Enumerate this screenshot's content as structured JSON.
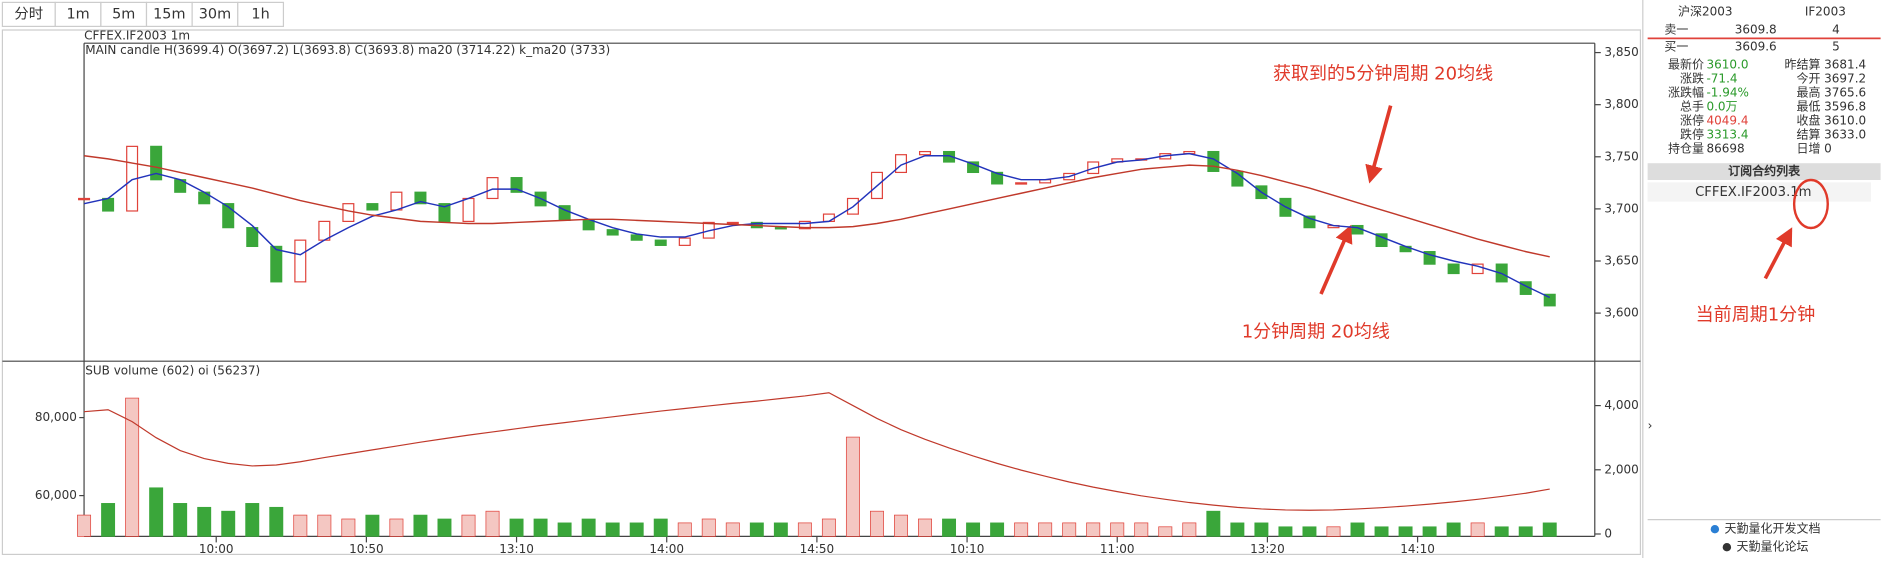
{
  "toolbar": {
    "buttons": [
      "分时",
      "1m",
      "5m",
      "15m",
      "30m",
      "1h"
    ]
  },
  "header": "CFFEX.IF2003 1m",
  "chart_data": [
    {
      "type": "candlestick",
      "subtitle": "MAIN candle H(3699.4) O(3697.2) L(3693.8) C(3693.8) ma20 (3714.22) k_ma20 (3733)",
      "x": [
        0,
        8,
        16,
        24,
        32,
        40,
        48,
        56,
        64,
        72,
        80,
        88,
        96,
        104,
        112,
        120,
        128,
        136,
        144,
        152,
        160,
        168,
        176,
        184,
        192,
        200,
        208,
        216,
        224,
        232,
        240,
        248,
        256,
        264,
        272,
        280,
        288,
        296,
        304,
        312,
        320,
        328,
        336,
        344,
        352,
        360,
        368,
        376,
        384,
        392,
        400,
        408,
        416,
        424,
        432,
        440,
        448,
        456,
        464,
        472,
        480,
        488
      ],
      "xlim": [
        0,
        503
      ],
      "series": [
        {
          "name": "candle",
          "up_color": "#e0423a",
          "down_color": "#3aa63a",
          "values": [
            3710,
            3698,
            3760,
            3728,
            3716,
            3705,
            3682,
            3664,
            3630,
            3670,
            3688,
            3705,
            3699,
            3716,
            3705,
            3688,
            3710,
            3730,
            3716,
            3703,
            3689,
            3680,
            3675,
            3670,
            3665,
            3672,
            3687,
            3687,
            3682,
            3681,
            3688,
            3695,
            3710,
            3735,
            3752,
            3755,
            3745,
            3735,
            3724,
            3725,
            3728,
            3734,
            3745,
            3748,
            3748,
            3753,
            3755,
            3736,
            3722,
            3710,
            3693,
            3682,
            3684,
            3676,
            3664,
            3659,
            3647,
            3638,
            3647,
            3630,
            3618,
            3607
          ]
        },
        {
          "name": "ma20",
          "color": "#2233bb",
          "values": [
            3705,
            3710,
            3728,
            3734,
            3728,
            3716,
            3702,
            3684,
            3661,
            3656,
            3670,
            3682,
            3693,
            3699,
            3707,
            3702,
            3710,
            3719,
            3719,
            3710,
            3699,
            3690,
            3682,
            3676,
            3673,
            3673,
            3679,
            3684,
            3686,
            3686,
            3686,
            3688,
            3702,
            3722,
            3742,
            3751,
            3751,
            3743,
            3734,
            3728,
            3728,
            3731,
            3739,
            3745,
            3747,
            3751,
            3753,
            3748,
            3734,
            3716,
            3702,
            3691,
            3684,
            3682,
            3673,
            3664,
            3656,
            3650,
            3645,
            3638,
            3626,
            3615
          ]
        },
        {
          "name": "k_ma20",
          "color": "#c0392b",
          "values": [
            3751,
            3748,
            3744,
            3740,
            3735,
            3730,
            3725,
            3720,
            3714,
            3708,
            3703,
            3698,
            3694,
            3691,
            3688,
            3687,
            3686,
            3686,
            3687,
            3688,
            3689,
            3690,
            3690,
            3689,
            3688,
            3687,
            3686,
            3685,
            3684,
            3683,
            3682,
            3682,
            3683,
            3686,
            3690,
            3695,
            3700,
            3705,
            3710,
            3715,
            3720,
            3725,
            3730,
            3734,
            3738,
            3740,
            3742,
            3741,
            3737,
            3732,
            3726,
            3720,
            3713,
            3706,
            3699,
            3692,
            3685,
            3678,
            3671,
            3665,
            3659,
            3654
          ]
        }
      ],
      "ylim": [
        3555,
        3859
      ],
      "yticks": [
        {
          "value": 3600,
          "label": "3,600"
        },
        {
          "value": 3650,
          "label": "3,650"
        },
        {
          "value": 3700,
          "label": "3,700"
        },
        {
          "value": 3750,
          "label": "3,750"
        },
        {
          "value": 3800,
          "label": "3,800"
        },
        {
          "value": 3850,
          "label": "3,850"
        }
      ]
    },
    {
      "type": "bar",
      "subtitle": "SUB volume (602) oi (56237)",
      "series": [
        {
          "name": "volume",
          "values": [
            55000,
            58000,
            85000,
            62000,
            58000,
            57000,
            56000,
            58000,
            57000,
            55000,
            55000,
            54000,
            55000,
            54000,
            55000,
            54000,
            55000,
            56000,
            54000,
            54000,
            53000,
            54000,
            53000,
            53000,
            54000,
            53000,
            54000,
            53000,
            53000,
            53000,
            53000,
            54000,
            75000,
            56000,
            55000,
            54000,
            54000,
            53000,
            53000,
            53000,
            53000,
            53000,
            53000,
            53000,
            53000,
            52000,
            53000,
            56000,
            53000,
            53000,
            52000,
            52000,
            52000,
            53000,
            52000,
            52000,
            52000,
            53000,
            53000,
            52000,
            52000,
            53000
          ]
        },
        {
          "name": "oi",
          "color": "#c0392b",
          "axis": "y2",
          "values": [
            3810,
            3870,
            3500,
            3000,
            2600,
            2350,
            2200,
            2120,
            2150,
            2250,
            2380,
            2500,
            2620,
            2740,
            2860,
            2970,
            3080,
            3180,
            3280,
            3380,
            3470,
            3560,
            3650,
            3740,
            3830,
            3910,
            3990,
            4070,
            4140,
            4220,
            4300,
            4400,
            4000,
            3600,
            3250,
            2950,
            2680,
            2430,
            2200,
            1990,
            1800,
            1620,
            1460,
            1320,
            1190,
            1080,
            980,
            900,
            830,
            780,
            750,
            740,
            750,
            780,
            820,
            870,
            930,
            1000,
            1080,
            1170,
            1270,
            1400
          ]
        }
      ],
      "ylim": [
        49538,
        93846
      ],
      "yticks": [
        {
          "value": 60000,
          "label": "60,000"
        },
        {
          "value": 80000,
          "label": "80,000"
        }
      ],
      "y2lim": [
        -75,
        5308
      ],
      "y2ticks": [
        0,
        {
          "value": 2000,
          "label": "2,000"
        },
        {
          "value": 4000,
          "label": "4,000"
        }
      ],
      "xticks": [
        {
          "value": 44,
          "label": "10:00"
        },
        {
          "value": 94,
          "label": "10:50"
        },
        {
          "value": 144,
          "label": "13:10"
        },
        {
          "value": 194,
          "label": "14:00"
        },
        {
          "value": 244,
          "label": "14:50"
        },
        {
          "value": 294,
          "label": "10:10"
        },
        {
          "value": 344,
          "label": "11:00"
        },
        {
          "value": 394,
          "label": "13:20"
        },
        {
          "value": 444,
          "label": "14:10"
        }
      ]
    }
  ],
  "annotations": [
    "获取到的5分钟周期 20均线",
    "1分钟周期 20均线",
    "当前周期1分钟"
  ],
  "sidebar": {
    "name": "沪深2003",
    "code": "IF2003",
    "quotes": [
      [
        "卖一",
        "3609.8",
        "4"
      ],
      [
        "买一",
        "3609.6",
        "5"
      ]
    ],
    "stats": [
      [
        "最新价",
        "3610.0",
        "昨结算",
        "3681.4"
      ],
      [
        "涨跌",
        "-71.4",
        "今开",
        "3697.2"
      ],
      [
        "涨跌幅",
        "-1.94%",
        "最高",
        "3765.6"
      ],
      [
        "总手",
        "0.0万",
        "最低",
        "3596.8"
      ],
      [
        "涨停",
        "4049.4",
        "收盘",
        "3610.0"
      ],
      [
        "跌停",
        "3313.4",
        "结算",
        "3633.0"
      ],
      [
        "持仓量",
        "86698",
        "日增",
        "0"
      ]
    ],
    "list_title": "订阅合约列表",
    "list": [
      "CFFEX.IF2003.1m"
    ],
    "links": [
      "天勤量化开发文档",
      "天勤量化论坛"
    ]
  }
}
